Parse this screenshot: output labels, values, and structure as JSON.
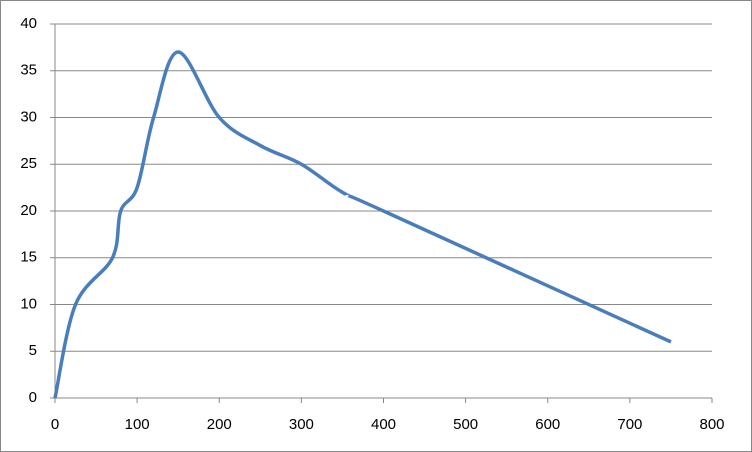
{
  "chart_data": {
    "type": "line",
    "smooth": true,
    "x": [
      0,
      25,
      70,
      80,
      100,
      120,
      150,
      200,
      250,
      300,
      350,
      400,
      750
    ],
    "series": [
      {
        "color": "#4a7ebb",
        "values": [
          0,
          10,
          15,
          20,
          22.5,
          30,
          37,
          30,
          27,
          25,
          22,
          20,
          6
        ]
      }
    ],
    "xlim": [
      0,
      800
    ],
    "xticks": [
      0,
      100,
      200,
      300,
      400,
      500,
      600,
      700,
      800
    ],
    "ylim": [
      0,
      40
    ],
    "yticks": [
      0,
      5,
      10,
      15,
      20,
      25,
      30,
      35,
      40
    ],
    "grid": true
  }
}
